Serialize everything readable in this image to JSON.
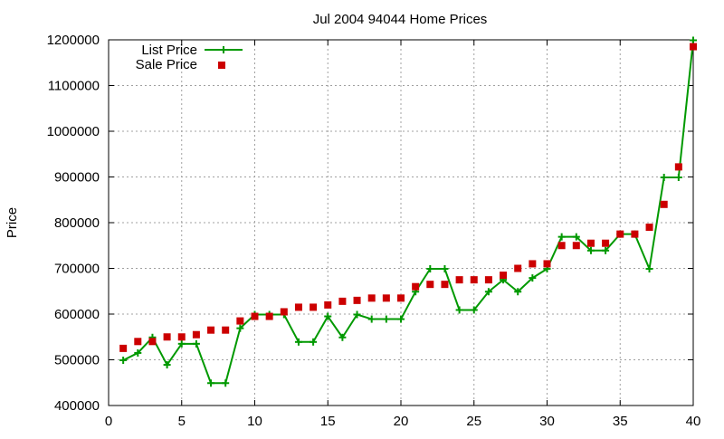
{
  "chart_data": {
    "type": "line",
    "title": "Jul 2004 94044 Home Prices",
    "xlabel": "",
    "ylabel": "Price",
    "xlim": [
      0,
      40
    ],
    "ylim": [
      400000,
      1200000
    ],
    "xticks": [
      0,
      5,
      10,
      15,
      20,
      25,
      30,
      35,
      40
    ],
    "yticks": [
      400000,
      500000,
      600000,
      700000,
      800000,
      900000,
      1000000,
      1100000,
      1200000
    ],
    "grid": true,
    "legend_position": "top-left",
    "x": [
      1,
      2,
      3,
      4,
      5,
      6,
      7,
      8,
      9,
      10,
      11,
      12,
      13,
      14,
      15,
      16,
      17,
      18,
      19,
      20,
      21,
      22,
      23,
      24,
      25,
      26,
      27,
      28,
      29,
      30,
      31,
      32,
      33,
      34,
      35,
      36,
      37,
      38,
      39,
      40
    ],
    "series": [
      {
        "name": "List Price",
        "style": "linespoints",
        "color": "#009900",
        "marker": "plus",
        "values": [
          499000,
          515000,
          549000,
          489000,
          535000,
          535000,
          449000,
          449000,
          569000,
          599000,
          599000,
          599000,
          539000,
          539000,
          595000,
          549000,
          599000,
          589000,
          589000,
          589000,
          649000,
          699000,
          699000,
          609000,
          609000,
          649000,
          675000,
          649000,
          679000,
          699000,
          769000,
          769000,
          739000,
          739000,
          775000,
          775000,
          699000,
          899000,
          899000,
          1199000
        ]
      },
      {
        "name": "Sale Price",
        "style": "points",
        "color": "#cc0000",
        "marker": "square",
        "values": [
          525000,
          540000,
          540000,
          550000,
          550000,
          555000,
          565000,
          565000,
          585000,
          595000,
          595000,
          605000,
          615000,
          615000,
          620000,
          628000,
          630000,
          635000,
          635000,
          635000,
          660000,
          665000,
          665000,
          675000,
          675000,
          675000,
          685000,
          700000,
          710000,
          710000,
          750000,
          750000,
          755000,
          755000,
          775000,
          775000,
          790000,
          840000,
          922000,
          1185000
        ]
      }
    ]
  }
}
